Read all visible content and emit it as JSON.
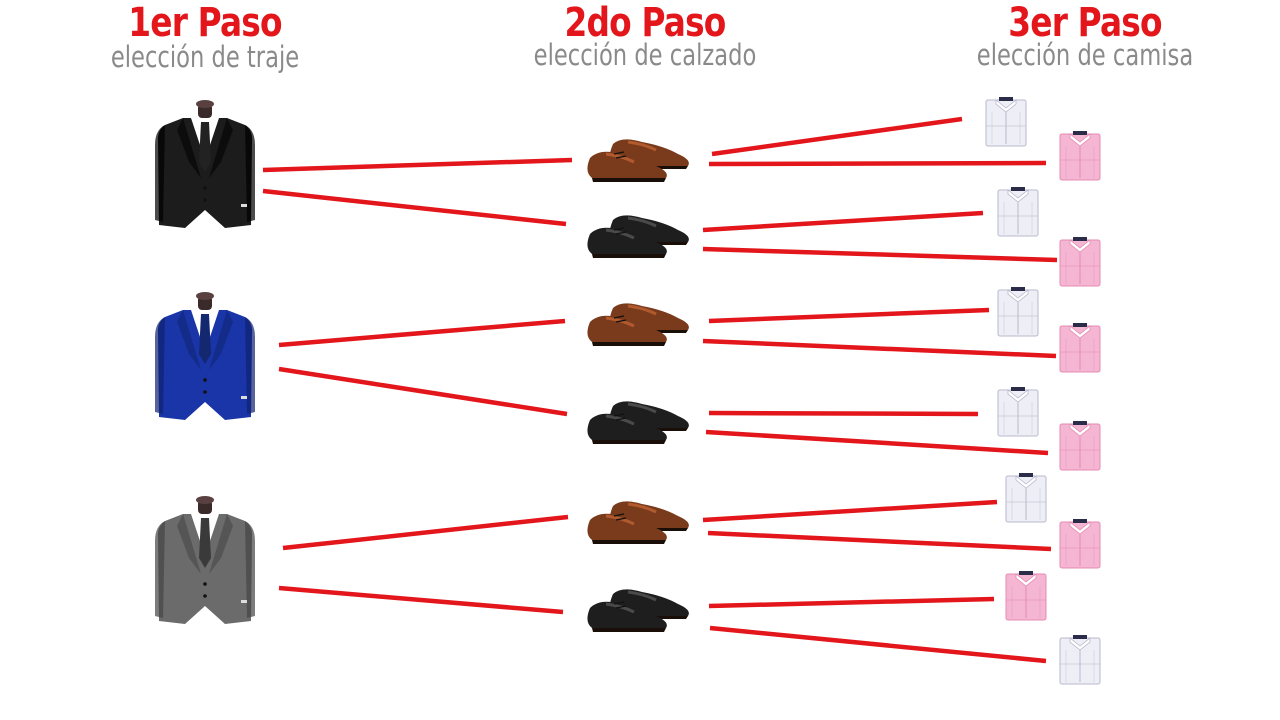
{
  "colors": {
    "accent": "#e3161b",
    "subtitle": "#8a8a8a",
    "line": "#e3161b",
    "suit_black": "#1c1c1c",
    "suit_blue": "#1a35a8",
    "suit_gray": "#6b6b6b",
    "shoe_brown": "#7a3a1c",
    "shoe_black": "#1e1e1e",
    "shirt_white": "#eeeef6",
    "shirt_pink": "#f4b6d2"
  },
  "steps": [
    {
      "title": "1er Paso",
      "subtitle": "elección de traje"
    },
    {
      "title": "2do Paso",
      "subtitle": "elección de calzado"
    },
    {
      "title": "3er Paso",
      "subtitle": "elección de camisa"
    }
  ],
  "suits": [
    {
      "color": "black",
      "icon": "suit-icon"
    },
    {
      "color": "blue",
      "icon": "suit-icon"
    },
    {
      "color": "gray",
      "icon": "suit-icon"
    }
  ],
  "shoes": [
    {
      "color": "brown",
      "icon": "shoes-icon"
    },
    {
      "color": "black",
      "icon": "shoes-icon"
    },
    {
      "color": "brown",
      "icon": "shoes-icon"
    },
    {
      "color": "black",
      "icon": "shoes-icon"
    },
    {
      "color": "brown",
      "icon": "shoes-icon"
    },
    {
      "color": "black",
      "icon": "shoes-icon"
    }
  ],
  "shirts": [
    {
      "color": "white",
      "icon": "shirt-icon"
    },
    {
      "color": "pink",
      "icon": "shirt-icon"
    },
    {
      "color": "white",
      "icon": "shirt-icon"
    },
    {
      "color": "pink",
      "icon": "shirt-icon"
    },
    {
      "color": "white",
      "icon": "shirt-icon"
    },
    {
      "color": "pink",
      "icon": "shirt-icon"
    },
    {
      "color": "white",
      "icon": "shirt-icon"
    },
    {
      "color": "pink",
      "icon": "shirt-icon"
    },
    {
      "color": "white",
      "icon": "shirt-icon"
    },
    {
      "color": "pink",
      "icon": "shirt-icon"
    },
    {
      "color": "pink",
      "icon": "shirt-icon"
    },
    {
      "color": "white",
      "icon": "shirt-icon"
    }
  ]
}
